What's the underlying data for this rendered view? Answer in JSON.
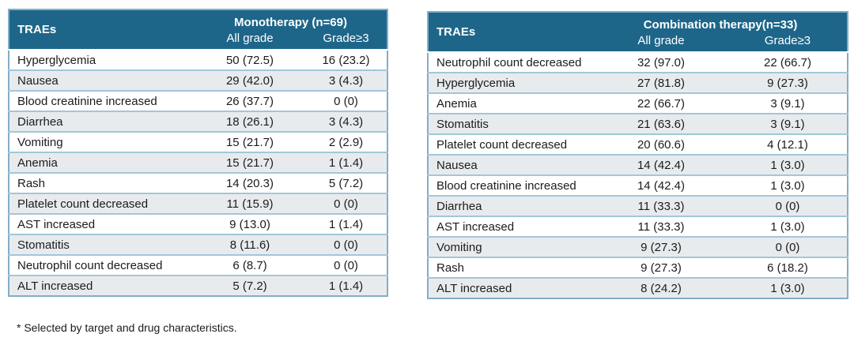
{
  "footnote": "* Selected by target and drug characteristics.",
  "colors": {
    "header_bg": "#1e6689",
    "header_text": "#ffffff",
    "row_bg": "#ffffff",
    "row_alt_bg": "#e8ebed",
    "row_border": "#a3c6da",
    "outer_border": "#84adc8",
    "body_text": "#1b1b1b"
  },
  "tables": [
    {
      "id": "monotherapy",
      "corner_header": "TRAEs",
      "group_header": "Monotherapy (n=69)",
      "column_headers": [
        "All grade",
        "Grade≥3"
      ],
      "rows": [
        [
          "Hyperglycemia",
          "50 (72.5)",
          "16 (23.2)"
        ],
        [
          "Nausea",
          "29 (42.0)",
          "3 (4.3)"
        ],
        [
          "Blood creatinine increased",
          "26 (37.7)",
          "0 (0)"
        ],
        [
          "Diarrhea",
          "18 (26.1)",
          "3 (4.3)"
        ],
        [
          "Vomiting",
          "15 (21.7)",
          "2 (2.9)"
        ],
        [
          "Anemia",
          "15 (21.7)",
          "1 (1.4)"
        ],
        [
          "Rash",
          "14 (20.3)",
          "5 (7.2)"
        ],
        [
          "Platelet count decreased",
          "11 (15.9)",
          "0 (0)"
        ],
        [
          "AST increased",
          "9 (13.0)",
          "1 (1.4)"
        ],
        [
          "Stomatitis",
          "8 (11.6)",
          "0 (0)"
        ],
        [
          "Neutrophil count decreased",
          "6 (8.7)",
          "0 (0)"
        ],
        [
          "ALT increased",
          "5 (7.2)",
          "1 (1.4)"
        ]
      ]
    },
    {
      "id": "combination",
      "corner_header": "TRAEs",
      "group_header": "Combination therapy(n=33)",
      "column_headers": [
        "All grade",
        "Grade≥3"
      ],
      "rows": [
        [
          "Neutrophil count decreased",
          "32 (97.0)",
          "22 (66.7)"
        ],
        [
          "Hyperglycemia",
          "27 (81.8)",
          "9 (27.3)"
        ],
        [
          "Anemia",
          "22 (66.7)",
          "3 (9.1)"
        ],
        [
          "Stomatitis",
          "21 (63.6)",
          "3 (9.1)"
        ],
        [
          "Platelet count decreased",
          "20 (60.6)",
          "4 (12.1)"
        ],
        [
          "Nausea",
          "14 (42.4)",
          "1 (3.0)"
        ],
        [
          "Blood creatinine increased",
          "14 (42.4)",
          "1 (3.0)"
        ],
        [
          "Diarrhea",
          "11 (33.3)",
          "0 (0)"
        ],
        [
          "AST increased",
          "11 (33.3)",
          "1 (3.0)"
        ],
        [
          "Vomiting",
          "9 (27.3)",
          "0 (0)"
        ],
        [
          "Rash",
          "9 (27.3)",
          "6 (18.2)"
        ],
        [
          "ALT increased",
          "8 (24.2)",
          "1 (3.0)"
        ]
      ]
    }
  ]
}
